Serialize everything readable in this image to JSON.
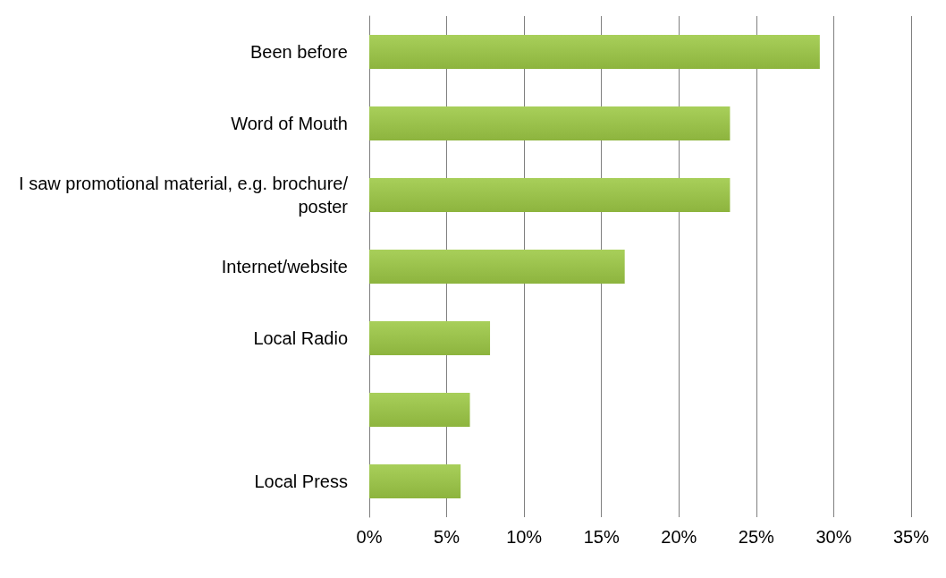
{
  "chart_data": {
    "type": "bar",
    "orientation": "horizontal",
    "categories": [
      "Been before",
      "Word of Mouth",
      "I saw promotional material, e.g. brochure/poster",
      "Internet/website",
      "Local Radio",
      null,
      "Local Press"
    ],
    "values": [
      29.1,
      23.3,
      23.3,
      16.5,
      7.8,
      6.5,
      5.9
    ],
    "color": "#8db43e",
    "xlim": [
      0,
      35
    ],
    "xticks": [
      {
        "value": 0,
        "label": "0%"
      },
      {
        "value": 5,
        "label": "5%"
      },
      {
        "value": 10,
        "label": "10%"
      },
      {
        "value": 15,
        "label": "15%"
      },
      {
        "value": 20,
        "label": "20%"
      },
      {
        "value": 25,
        "label": "25%"
      },
      {
        "value": 30,
        "label": "30%"
      },
      {
        "value": 35,
        "label": "35%"
      }
    ],
    "grid": "x"
  }
}
